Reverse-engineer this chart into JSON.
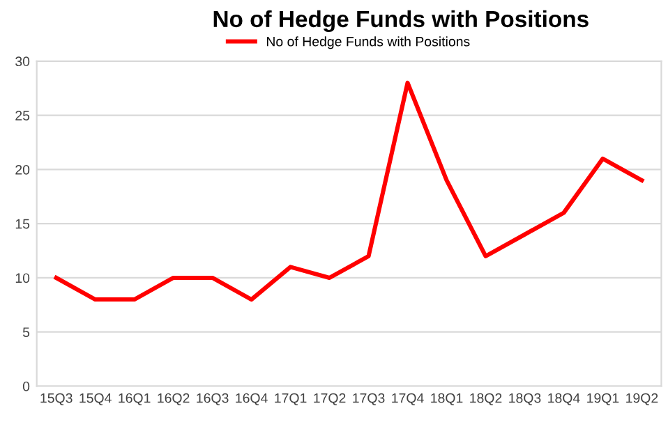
{
  "chart_data": {
    "type": "line",
    "title": "No of Hedge Funds with Positions",
    "categories": [
      "15Q3",
      "15Q4",
      "16Q1",
      "16Q2",
      "16Q3",
      "16Q4",
      "17Q1",
      "17Q2",
      "17Q3",
      "17Q4",
      "18Q1",
      "18Q2",
      "18Q3",
      "18Q4",
      "19Q1",
      "19Q2"
    ],
    "series": [
      {
        "name": "No of Hedge Funds with Positions",
        "color": "#ff0000",
        "values": [
          10,
          8,
          8,
          10,
          10,
          8,
          11,
          10,
          12,
          28,
          19,
          12,
          14,
          16,
          21,
          19
        ]
      }
    ],
    "ylim": [
      0,
      30
    ],
    "yticks": [
      0,
      5,
      10,
      15,
      20,
      25,
      30
    ],
    "grid": "y",
    "legend": "top",
    "marker": "none",
    "line_style": "solid"
  }
}
